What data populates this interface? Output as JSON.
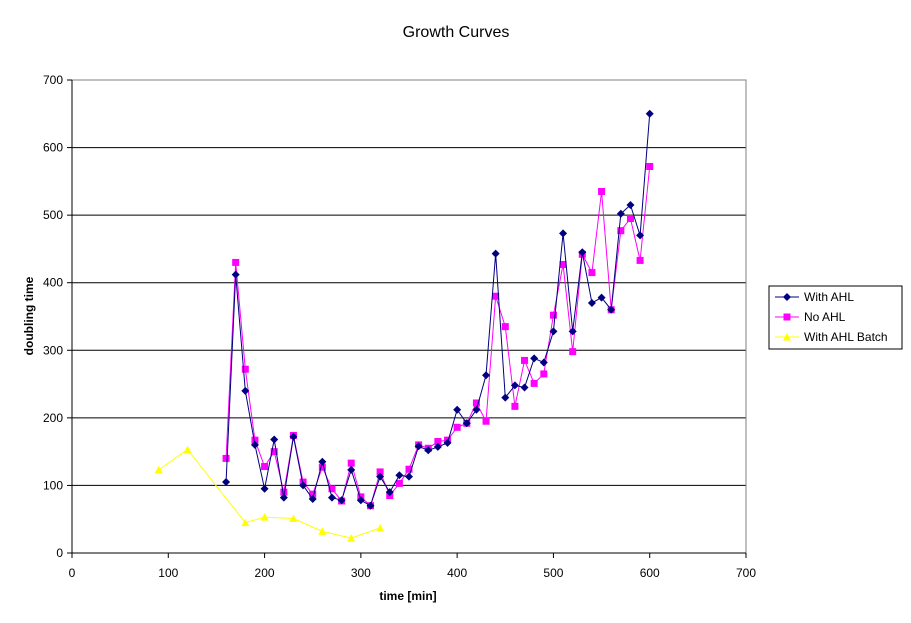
{
  "chart_data": {
    "type": "line",
    "title": "Growth Curves",
    "xlabel": "time [min]",
    "ylabel": "doubling time",
    "xlim": [
      0,
      700
    ],
    "ylim": [
      0,
      700
    ],
    "x_ticks": [
      0,
      100,
      200,
      300,
      400,
      500,
      600,
      700
    ],
    "y_ticks": [
      0,
      100,
      200,
      300,
      400,
      500,
      600,
      700
    ],
    "x_tick_labels": [
      "0",
      "100",
      "200",
      "300",
      "400",
      "500",
      "600",
      "700"
    ],
    "y_tick_labels": [
      "0",
      "100",
      "200",
      "300",
      "400",
      "500",
      "600",
      "700"
    ],
    "grid": "horizontal major gridlines",
    "legend_position": "right",
    "series": [
      {
        "name": "With AHL",
        "marker": "diamond",
        "color": "#000080",
        "x": [
          160,
          170,
          180,
          190,
          200,
          210,
          220,
          230,
          240,
          250,
          260,
          270,
          280,
          290,
          300,
          310,
          320,
          330,
          340,
          350,
          360,
          370,
          380,
          390,
          400,
          410,
          420,
          430,
          440,
          450,
          460,
          470,
          480,
          490,
          500,
          510,
          520,
          530,
          540,
          550,
          560,
          570,
          580,
          590,
          600
        ],
        "y": [
          105,
          412,
          240,
          160,
          95,
          168,
          82,
          172,
          100,
          80,
          135,
          82,
          78,
          123,
          78,
          70,
          113,
          90,
          115,
          113,
          158,
          152,
          157,
          163,
          212,
          192,
          212,
          263,
          443,
          230,
          248,
          245,
          288,
          282,
          328,
          473,
          328,
          445,
          370,
          378,
          360,
          502,
          515,
          470,
          650
        ]
      },
      {
        "name": "No AHL",
        "marker": "square",
        "color": "#FF00FF",
        "x": [
          160,
          170,
          180,
          190,
          200,
          210,
          220,
          230,
          240,
          250,
          260,
          270,
          280,
          290,
          300,
          310,
          320,
          330,
          340,
          350,
          360,
          370,
          380,
          390,
          400,
          410,
          420,
          430,
          440,
          450,
          460,
          470,
          480,
          490,
          500,
          510,
          520,
          530,
          540,
          550,
          560,
          570,
          580,
          590,
          600
        ],
        "y": [
          140,
          430,
          272,
          167,
          128,
          150,
          90,
          174,
          105,
          87,
          127,
          95,
          77,
          133,
          83,
          70,
          120,
          85,
          103,
          124,
          160,
          155,
          165,
          167,
          186,
          192,
          222,
          195,
          380,
          335,
          217,
          285,
          251,
          265,
          352,
          427,
          298,
          442,
          415,
          535,
          360,
          477,
          495,
          433,
          572
        ]
      },
      {
        "name": "With AHL Batch",
        "marker": "triangle",
        "color": "#FFFF00",
        "x": [
          90,
          120,
          180,
          200,
          230,
          260,
          290,
          320
        ],
        "y": [
          123,
          153,
          45,
          53,
          51,
          32,
          22,
          37
        ]
      }
    ]
  }
}
